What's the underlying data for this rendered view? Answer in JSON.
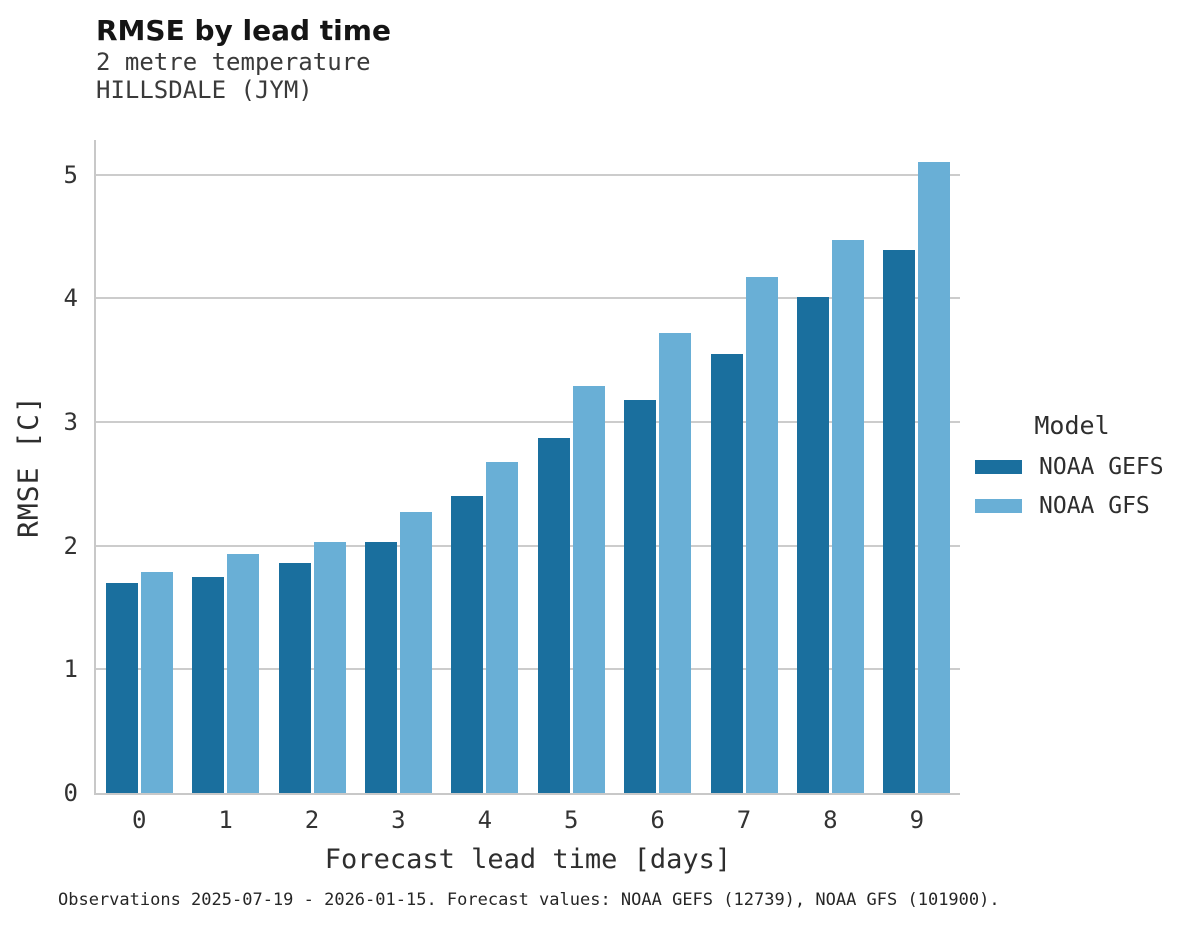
{
  "header": {
    "title": "RMSE by lead time",
    "subtitle": "2 metre temperature",
    "station": "HILLSDALE (JYM)"
  },
  "chart_data": {
    "type": "bar",
    "title": "RMSE by lead time",
    "subtitle": "2 metre temperature",
    "station": "HILLSDALE (JYM)",
    "categories": [
      "0",
      "1",
      "2",
      "3",
      "4",
      "5",
      "6",
      "7",
      "8",
      "9"
    ],
    "series": [
      {
        "name": "NOAA GEFS",
        "color": "#1A6F9E",
        "values": [
          1.7,
          1.75,
          1.86,
          2.03,
          2.4,
          2.87,
          3.18,
          3.55,
          4.01,
          4.39
        ]
      },
      {
        "name": "NOAA GFS",
        "color": "#69AFD6",
        "values": [
          1.79,
          1.93,
          2.03,
          2.27,
          2.68,
          3.29,
          3.72,
          4.17,
          4.47,
          5.1
        ]
      }
    ],
    "xlabel": "Forecast lead time [days]",
    "ylabel": "RMSE [C]",
    "ylim": [
      0,
      5.28
    ],
    "yticks": [
      0,
      1,
      2,
      3,
      4,
      5
    ],
    "grid": "horizontal",
    "gridline_color": "#cccccc",
    "spine_color": "#c8c8c8",
    "legend_title": "Model",
    "legend_position": "right-of-plot"
  },
  "caption": "Observations 2025-07-19 - 2026-01-15. Forecast values: NOAA GEFS (12739), NOAA GFS (101900)."
}
